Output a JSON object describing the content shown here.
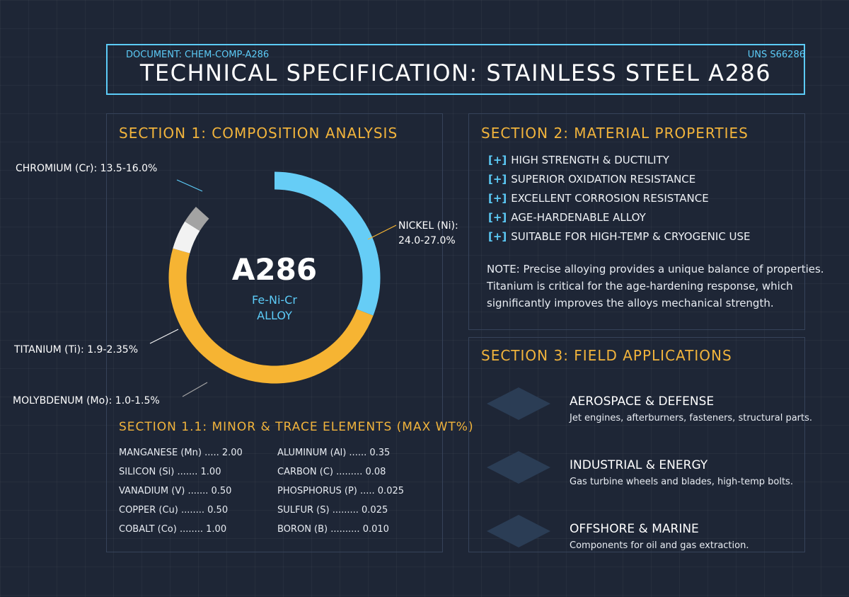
{
  "header": {
    "document_id": "DOCUMENT: CHEM-COMP-A286",
    "uns": "UNS S66286",
    "title": "TECHNICAL SPECIFICATION: STAINLESS STEEL A286"
  },
  "section1": {
    "title": "SECTION 1: COMPOSITION ANALYSIS",
    "center": {
      "title": "A286",
      "subtitle": [
        "Fe-Ni-Cr",
        "ALLOY"
      ]
    },
    "callouts": {
      "chromium": [
        "CHROMIUM (Cr): 13.5-16.0%"
      ],
      "nickel": [
        "NICKEL (Ni):",
        "24.0-27.0%"
      ],
      "titanium": [
        "TITANIUM (Ti): 1.9-2.35%"
      ],
      "molybdenum": [
        "MOLYBDENUM (Mo): 1.0-1.5%"
      ]
    }
  },
  "section1_1": {
    "title": "SECTION 1.1: MINOR & TRACE ELEMENTS (MAX WT%)",
    "left": [
      "MANGANESE (Mn) ..... 2.00",
      "SILICON (Si) ....... 1.00",
      "VANADIUM (V) ....... 0.50",
      "COPPER (Cu) ........ 0.50",
      "COBALT (Co) ........ 1.00"
    ],
    "right": [
      "ALUMINUM (Al) ...... 0.35",
      "CARBON (C) ......... 0.08",
      "PHOSPHORUS (P) ..... 0.025",
      "SULFUR (S) ......... 0.025",
      "BORON (B) .......... 0.010"
    ]
  },
  "section2": {
    "title": "SECTION 2: MATERIAL PROPERTIES",
    "marker": "[+]",
    "items": [
      "HIGH STRENGTH & DUCTILITY",
      "SUPERIOR OXIDATION RESISTANCE",
      "EXCELLENT CORROSION RESISTANCE",
      "AGE-HARDENABLE ALLOY",
      "SUITABLE FOR HIGH-TEMP & CRYOGENIC USE"
    ],
    "note": [
      "NOTE: Precise alloying provides a unique balance of properties.",
      "Titanium is critical for the age-hardening response, which",
      "significantly improves the alloys mechanical strength."
    ]
  },
  "section3": {
    "title": "SECTION 3: FIELD APPLICATIONS",
    "items": [
      {
        "heading": "AEROSPACE & DEFENSE",
        "description": "Jet engines, afterburners, fasteners, structural parts."
      },
      {
        "heading": "INDUSTRIAL & ENERGY",
        "description": "Gas turbine wheels and blades, high-temp bolts."
      },
      {
        "heading": "OFFSHORE & MARINE",
        "description": "Components for oil and gas extraction."
      }
    ]
  }
}
